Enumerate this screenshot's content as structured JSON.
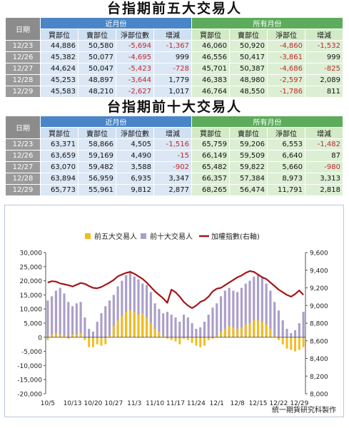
{
  "title1": "台指期前五大交易人",
  "title2": "台指期前十大交易人",
  "headers": {
    "date": "日期",
    "near_month": "近月份",
    "all_month": "所有月份",
    "cols": [
      "買部位",
      "賣部位",
      "淨部位數",
      "增減",
      "買部位",
      "賣部位",
      "淨部位",
      "增減"
    ]
  },
  "table_top5": [
    {
      "date": "12/23",
      "cells": [
        "44,886",
        "50,580",
        "-5,694",
        "-1,367",
        "46,060",
        "50,920",
        "-4,860",
        "-1,532"
      ]
    },
    {
      "date": "12/26",
      "cells": [
        "45,382",
        "50,077",
        "-4,695",
        "999",
        "46,556",
        "50,417",
        "-3,861",
        "999"
      ]
    },
    {
      "date": "12/27",
      "cells": [
        "44,624",
        "50,047",
        "-5,423",
        "-728",
        "45,701",
        "50,387",
        "-4,686",
        "-825"
      ]
    },
    {
      "date": "12/28",
      "cells": [
        "45,253",
        "48,897",
        "-3,644",
        "1,779",
        "46,383",
        "48,980",
        "-2,597",
        "2,089"
      ]
    },
    {
      "date": "12/29",
      "cells": [
        "45,583",
        "48,210",
        "-2,627",
        "1,017",
        "46,764",
        "48,550",
        "-1,786",
        "811"
      ]
    }
  ],
  "table_top10": [
    {
      "date": "12/23",
      "cells": [
        "63,371",
        "58,866",
        "4,505",
        "-1,516",
        "65,759",
        "59,206",
        "6,553",
        "-1,482"
      ]
    },
    {
      "date": "12/26",
      "cells": [
        "63,659",
        "59,169",
        "4,490",
        "-15",
        "66,149",
        "59,509",
        "6,640",
        "87"
      ]
    },
    {
      "date": "12/27",
      "cells": [
        "63,070",
        "59,482",
        "3,588",
        "-902",
        "65,482",
        "59,822",
        "5,660",
        "-980"
      ]
    },
    {
      "date": "12/28",
      "cells": [
        "63,894",
        "56,959",
        "6,935",
        "3,347",
        "66,357",
        "57,384",
        "8,973",
        "3,313"
      ]
    },
    {
      "date": "12/29",
      "cells": [
        "65,773",
        "55,961",
        "9,812",
        "2,877",
        "68,265",
        "56,474",
        "11,791",
        "2,818"
      ]
    }
  ],
  "colors": {
    "top5": "#f2bc1b",
    "top10": "#ab9fc9",
    "index": "#a3161a"
  },
  "credit": "統一期貨研究科製作",
  "chart_data": {
    "type": "bar",
    "legend_position": "top",
    "grid": false,
    "x_tick_labels": [
      "10/5",
      "10/13",
      "10/20",
      "10/27",
      "11/3",
      "11/10",
      "11/17",
      "11/24",
      "12/1",
      "12/8",
      "12/15",
      "12/22",
      "12/29"
    ],
    "x_tick_positions": [
      0,
      6,
      11,
      16,
      21,
      26,
      31,
      36,
      41,
      46,
      51,
      56,
      61
    ],
    "y_left_ticks": [
      "30,000",
      "25,000",
      "20,000",
      "15,000",
      "10,000",
      "5,000",
      "0",
      "-5,000",
      "-10,000",
      "-15,000",
      "-20,000"
    ],
    "y_right_ticks": [
      "9,600",
      "9,400",
      "9,200",
      "9,000",
      "8,800",
      "8,600",
      "8,400",
      "8,200",
      "8,000"
    ],
    "y_left_range": [
      -20000,
      30000
    ],
    "y_right_range": [
      8000,
      9600
    ],
    "series": [
      {
        "name": "前五大交易人",
        "kind": "bar",
        "axis": "left",
        "values": [
          -1000,
          1000,
          1500,
          1000,
          500,
          -500,
          1000,
          1000,
          1500,
          -1000,
          -3500,
          -3500,
          -2500,
          -3000,
          -2500,
          500,
          4000,
          6000,
          7500,
          9000,
          9500,
          9000,
          8000,
          8500,
          7000,
          5000,
          3000,
          2000,
          500,
          -500,
          -1000,
          -1500,
          -2500,
          -500,
          -1000,
          -2000,
          -3000,
          -3500,
          -3000,
          -1000,
          -500,
          500,
          2000,
          3000,
          4000,
          3500,
          3000,
          3500,
          4500,
          5000,
          6000,
          6000,
          5500,
          4500,
          3000,
          500,
          -1000,
          -2500,
          -4000,
          -4500,
          -5000,
          -4500,
          -3500
        ]
      },
      {
        "name": "前十大交易人",
        "kind": "bar",
        "axis": "left",
        "values": [
          13000,
          14500,
          16500,
          17500,
          15500,
          12500,
          11000,
          12000,
          12500,
          7000,
          3000,
          2000,
          5500,
          8500,
          11000,
          13000,
          15000,
          18000,
          20000,
          22000,
          23500,
          21500,
          20500,
          19000,
          18500,
          16000,
          12000,
          10000,
          8500,
          9000,
          8000,
          7000,
          5500,
          8000,
          7000,
          5000,
          3000,
          3500,
          5500,
          8000,
          10500,
          12000,
          14500,
          16500,
          17500,
          16500,
          16000,
          17500,
          19000,
          20000,
          21500,
          22000,
          21000,
          19000,
          16500,
          12500,
          9500,
          6000,
          3000,
          1500,
          2500,
          5000,
          9000
        ]
      },
      {
        "name": "加權指數(右軸)",
        "kind": "line",
        "axis": "right",
        "values": [
          9260,
          9275,
          9270,
          9250,
          9240,
          9230,
          9215,
          9235,
          9255,
          9245,
          9220,
          9200,
          9195,
          9210,
          9235,
          9260,
          9290,
          9330,
          9350,
          9370,
          9380,
          9360,
          9330,
          9300,
          9260,
          9210,
          9160,
          9120,
          9080,
          9030,
          9180,
          9150,
          9100,
          9040,
          9000,
          8970,
          9000,
          9040,
          9060,
          9100,
          9160,
          9190,
          9200,
          9230,
          9260,
          9290,
          9320,
          9340,
          9370,
          9390,
          9380,
          9350,
          9320,
          9300,
          9260,
          9220,
          9180,
          9150,
          9120,
          9100,
          9130,
          9170,
          9120
        ]
      }
    ]
  }
}
